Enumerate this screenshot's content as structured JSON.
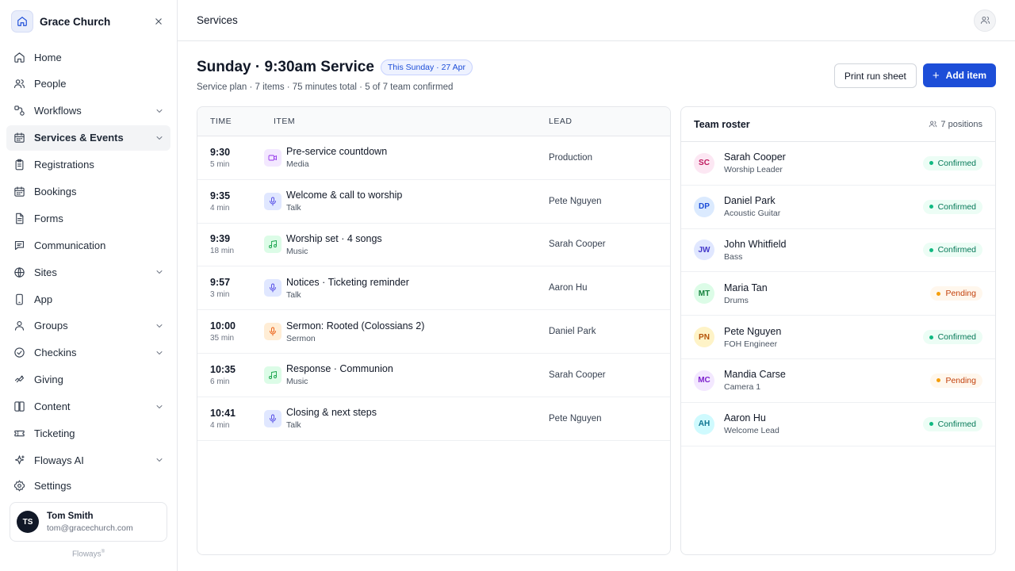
{
  "org": {
    "name": "Grace Church"
  },
  "sidebar": {
    "items": [
      {
        "label": "Home",
        "icon": "home-icon",
        "chevron": false,
        "active": false
      },
      {
        "label": "People",
        "icon": "people-icon",
        "chevron": false,
        "active": false
      },
      {
        "label": "Workflows",
        "icon": "workflow-icon",
        "chevron": true,
        "active": false
      },
      {
        "label": "Services & Events",
        "icon": "calendar-icon",
        "chevron": true,
        "active": true
      },
      {
        "label": "Registrations",
        "icon": "clipboard-icon",
        "chevron": false,
        "active": false
      },
      {
        "label": "Bookings",
        "icon": "calendar-icon",
        "chevron": false,
        "active": false
      },
      {
        "label": "Forms",
        "icon": "document-icon",
        "chevron": false,
        "active": false
      },
      {
        "label": "Communication",
        "icon": "message-icon",
        "chevron": false,
        "active": false
      },
      {
        "label": "Sites",
        "icon": "globe-icon",
        "chevron": true,
        "active": false
      },
      {
        "label": "App",
        "icon": "phone-icon",
        "chevron": false,
        "active": false
      },
      {
        "label": "Groups",
        "icon": "group-icon",
        "chevron": true,
        "active": false
      },
      {
        "label": "Checkins",
        "icon": "check-circle-icon",
        "chevron": true,
        "active": false
      },
      {
        "label": "Giving",
        "icon": "giving-icon",
        "chevron": false,
        "active": false
      },
      {
        "label": "Content",
        "icon": "book-icon",
        "chevron": true,
        "active": false
      },
      {
        "label": "Ticketing",
        "icon": "ticket-icon",
        "chevron": false,
        "active": false
      },
      {
        "label": "Floways AI",
        "icon": "sparkle-icon",
        "chevron": true,
        "active": false
      }
    ],
    "settings_label": "Settings"
  },
  "user": {
    "initials": "TS",
    "name": "Tom Smith",
    "email": "tom@gracechurch.com"
  },
  "brand": "Floways",
  "brand_mark": "®",
  "topbar": {
    "title": "Services"
  },
  "page": {
    "title": "Sunday · 9:30am Service",
    "badge": "This Sunday · 27 Apr",
    "subtitle": "Service plan · 7 items · 75 minutes total · 5 of 7 team confirmed",
    "print_label": "Print run sheet",
    "add_label": "Add item"
  },
  "plan": {
    "headers": {
      "time": "TIME",
      "item": "ITEM",
      "lead": "LEAD"
    },
    "rows": [
      {
        "time": "9:30",
        "duration": "5 min",
        "title": "Pre-service countdown",
        "type": "Media",
        "lead": "Production",
        "icon": "video-icon",
        "bg": "#f3e8ff",
        "fg": "#9333ea"
      },
      {
        "time": "9:35",
        "duration": "4 min",
        "title": "Welcome & call to worship",
        "type": "Talk",
        "lead": "Pete Nguyen",
        "icon": "mic-icon",
        "bg": "#e0e7ff",
        "fg": "#4f46e5"
      },
      {
        "time": "9:39",
        "duration": "18 min",
        "title": "Worship set · 4 songs",
        "type": "Music",
        "lead": "Sarah Cooper",
        "icon": "music-icon",
        "bg": "#dcfce7",
        "fg": "#16a34a"
      },
      {
        "time": "9:57",
        "duration": "3 min",
        "title": "Notices · Ticketing reminder",
        "type": "Talk",
        "lead": "Aaron Hu",
        "icon": "mic-icon",
        "bg": "#e0e7ff",
        "fg": "#4f46e5"
      },
      {
        "time": "10:00",
        "duration": "35 min",
        "title": "Sermon: Rooted (Colossians 2)",
        "type": "Sermon",
        "lead": "Daniel Park",
        "icon": "mic-icon",
        "bg": "#ffedd5",
        "fg": "#ea580c"
      },
      {
        "time": "10:35",
        "duration": "6 min",
        "title": "Response · Communion",
        "type": "Music",
        "lead": "Sarah Cooper",
        "icon": "music-icon",
        "bg": "#dcfce7",
        "fg": "#16a34a"
      },
      {
        "time": "10:41",
        "duration": "4 min",
        "title": "Closing & next steps",
        "type": "Talk",
        "lead": "Pete Nguyen",
        "icon": "mic-icon",
        "bg": "#e0e7ff",
        "fg": "#4f46e5"
      }
    ]
  },
  "roster": {
    "title": "Team roster",
    "count": "7 positions",
    "members": [
      {
        "initials": "SC",
        "name": "Sarah Cooper",
        "role": "Worship Leader",
        "status": "Confirmed",
        "avatar_bg": "#fce7f3",
        "avatar_fg": "#be185d"
      },
      {
        "initials": "DP",
        "name": "Daniel Park",
        "role": "Acoustic Guitar",
        "status": "Confirmed",
        "avatar_bg": "#dbeafe",
        "avatar_fg": "#1d4ed8"
      },
      {
        "initials": "JW",
        "name": "John Whitfield",
        "role": "Bass",
        "status": "Confirmed",
        "avatar_bg": "#e0e7ff",
        "avatar_fg": "#4338ca"
      },
      {
        "initials": "MT",
        "name": "Maria Tan",
        "role": "Drums",
        "status": "Pending",
        "avatar_bg": "#dcfce7",
        "avatar_fg": "#15803d"
      },
      {
        "initials": "PN",
        "name": "Pete Nguyen",
        "role": "FOH Engineer",
        "status": "Confirmed",
        "avatar_bg": "#fef3c7",
        "avatar_fg": "#b45309"
      },
      {
        "initials": "MC",
        "name": "Mandia Carse",
        "role": "Camera 1",
        "status": "Pending",
        "avatar_bg": "#f3e8ff",
        "avatar_fg": "#7e22ce"
      },
      {
        "initials": "AH",
        "name": "Aaron Hu",
        "role": "Welcome Lead",
        "status": "Confirmed",
        "avatar_bg": "#cffafe",
        "avatar_fg": "#0e7490"
      }
    ]
  },
  "colors": {
    "accent": "#1d4ed8",
    "confirmed_bg": "#ecfdf5",
    "confirmed_fg": "#047857",
    "confirmed_dot": "#10b981",
    "pending_bg": "#fff7ed",
    "pending_fg": "#c2410c",
    "pending_dot": "#f59e0b"
  }
}
